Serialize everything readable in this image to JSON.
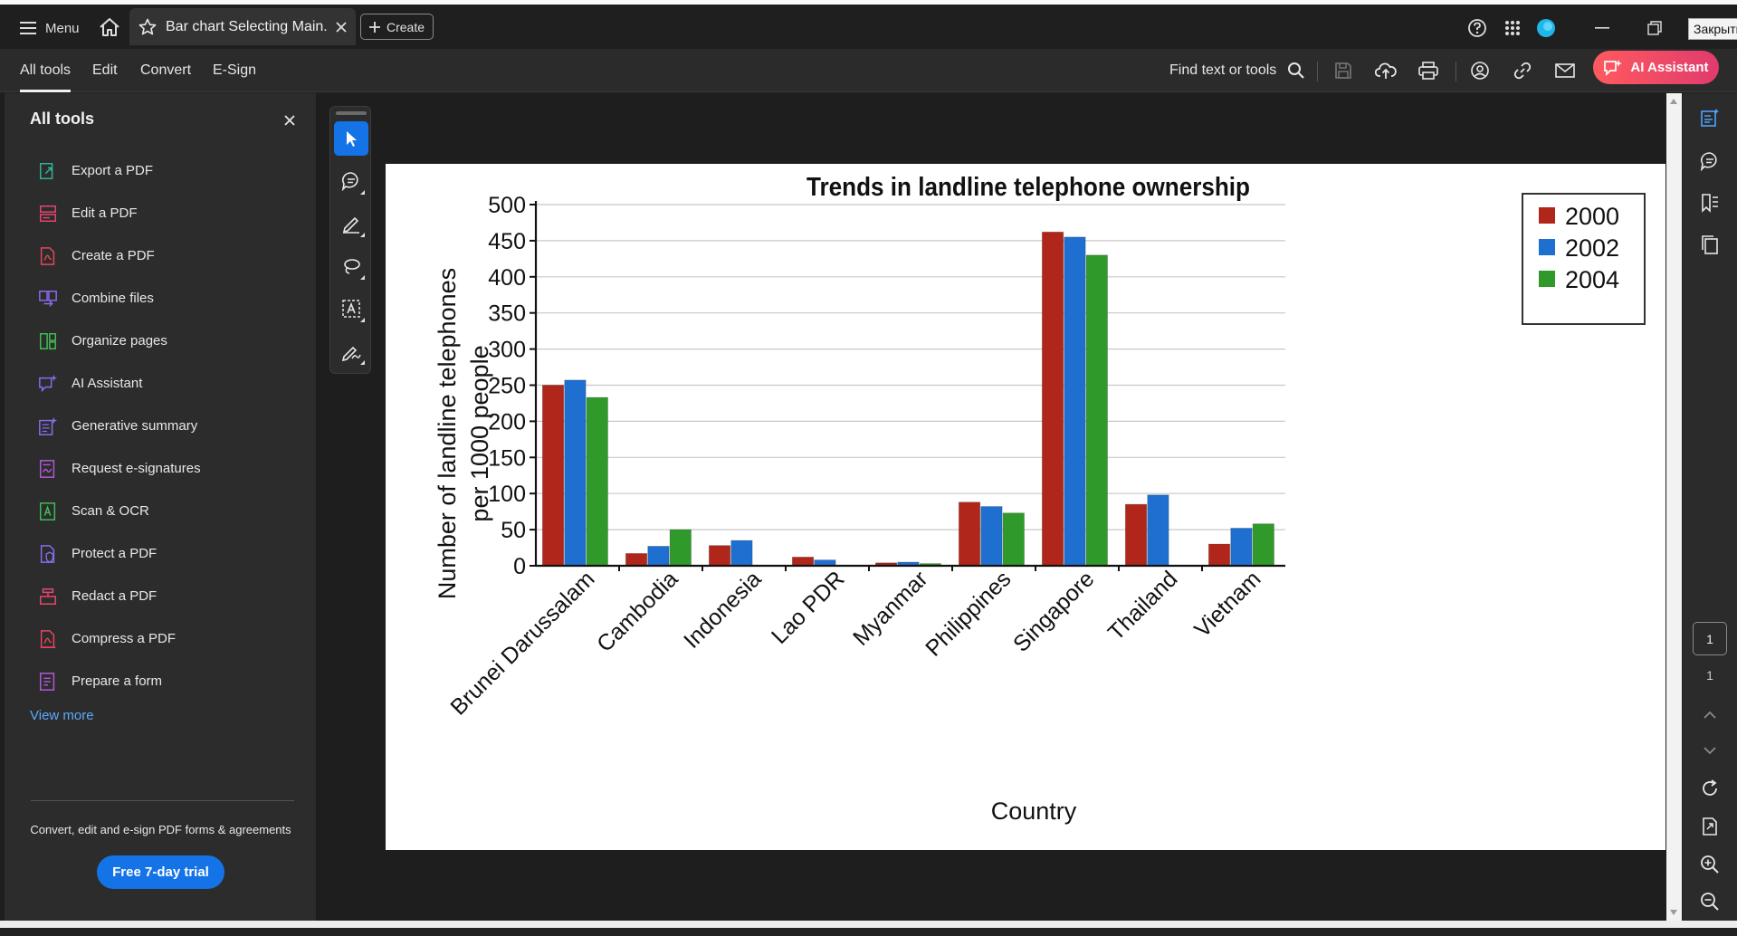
{
  "titlebar": {
    "menu_label": "Menu",
    "tab_title": "Bar chart Selecting Main...",
    "create_label": "Create",
    "close_tooltip": "Закрыть"
  },
  "toolbar": {
    "tabs": [
      {
        "label": "All tools",
        "active": true
      },
      {
        "label": "Edit",
        "active": false
      },
      {
        "label": "Convert",
        "active": false
      },
      {
        "label": "E-Sign",
        "active": false
      }
    ],
    "find_label": "Find text or tools",
    "ai_label": "AI Assistant",
    "ai_gradient": [
      "#ff5a5f",
      "#e03b6d"
    ]
  },
  "left_panel": {
    "title": "All tools",
    "tools": [
      {
        "label": "Export a PDF",
        "icon": "export-pdf-icon",
        "color": "#2fb39a"
      },
      {
        "label": "Edit a PDF",
        "icon": "edit-pdf-icon",
        "color": "#e8466e"
      },
      {
        "label": "Create a PDF",
        "icon": "create-pdf-icon",
        "color": "#e8465a"
      },
      {
        "label": "Combine files",
        "icon": "combine-files-icon",
        "color": "#8a6cf0"
      },
      {
        "label": "Organize pages",
        "icon": "organize-pages-icon",
        "color": "#3fbf55"
      },
      {
        "label": "AI Assistant",
        "icon": "ai-assistant-icon",
        "color": "#8a6cf0"
      },
      {
        "label": "Generative summary",
        "icon": "generative-summary-icon",
        "color": "#8a6cf0"
      },
      {
        "label": "Request e-signatures",
        "icon": "request-esignatures-icon",
        "color": "#b45ad8"
      },
      {
        "label": "Scan & OCR",
        "icon": "scan-ocr-icon",
        "color": "#3fbf55"
      },
      {
        "label": "Protect a PDF",
        "icon": "protect-pdf-icon",
        "color": "#8a6cf0"
      },
      {
        "label": "Redact a PDF",
        "icon": "redact-pdf-icon",
        "color": "#e8466e"
      },
      {
        "label": "Compress a PDF",
        "icon": "compress-pdf-icon",
        "color": "#e8465a"
      },
      {
        "label": "Prepare a form",
        "icon": "prepare-form-icon",
        "color": "#b45ad8"
      }
    ],
    "view_more": "View more",
    "promo": "Convert, edit and e-sign PDF forms & agreements",
    "trial_label": "Free 7-day trial"
  },
  "pagination": {
    "current": "1",
    "total": "1"
  },
  "chart_data": {
    "type": "bar",
    "title": "Trends in landline telephone ownership",
    "xlabel": "Country",
    "ylabel_lines": [
      "Number of landline telephones",
      "per 1000 people"
    ],
    "ylim": [
      0,
      500
    ],
    "yticks": [
      "0",
      "50",
      "100",
      "150",
      "200",
      "250",
      "300",
      "350",
      "400",
      "450",
      "500"
    ],
    "grid": true,
    "legend_position": "top-right",
    "categories": [
      "Brunei Darussalam",
      "Cambodia",
      "Indonesia",
      "Lao PDR",
      "Myanmar",
      "Philippines",
      "Singapore",
      "Thailand",
      "Vietnam"
    ],
    "series": [
      {
        "name": "2000",
        "color": "#b0261a",
        "values": [
          250,
          17,
          28,
          12,
          4,
          88,
          462,
          85,
          30
        ]
      },
      {
        "name": "2002",
        "color": "#1f6fd1",
        "values": [
          257,
          27,
          35,
          8,
          5,
          82,
          455,
          98,
          52
        ]
      },
      {
        "name": "2004",
        "color": "#2f9a2a",
        "values": [
          233,
          50,
          0,
          0,
          3,
          73,
          430,
          0,
          58
        ]
      }
    ]
  }
}
